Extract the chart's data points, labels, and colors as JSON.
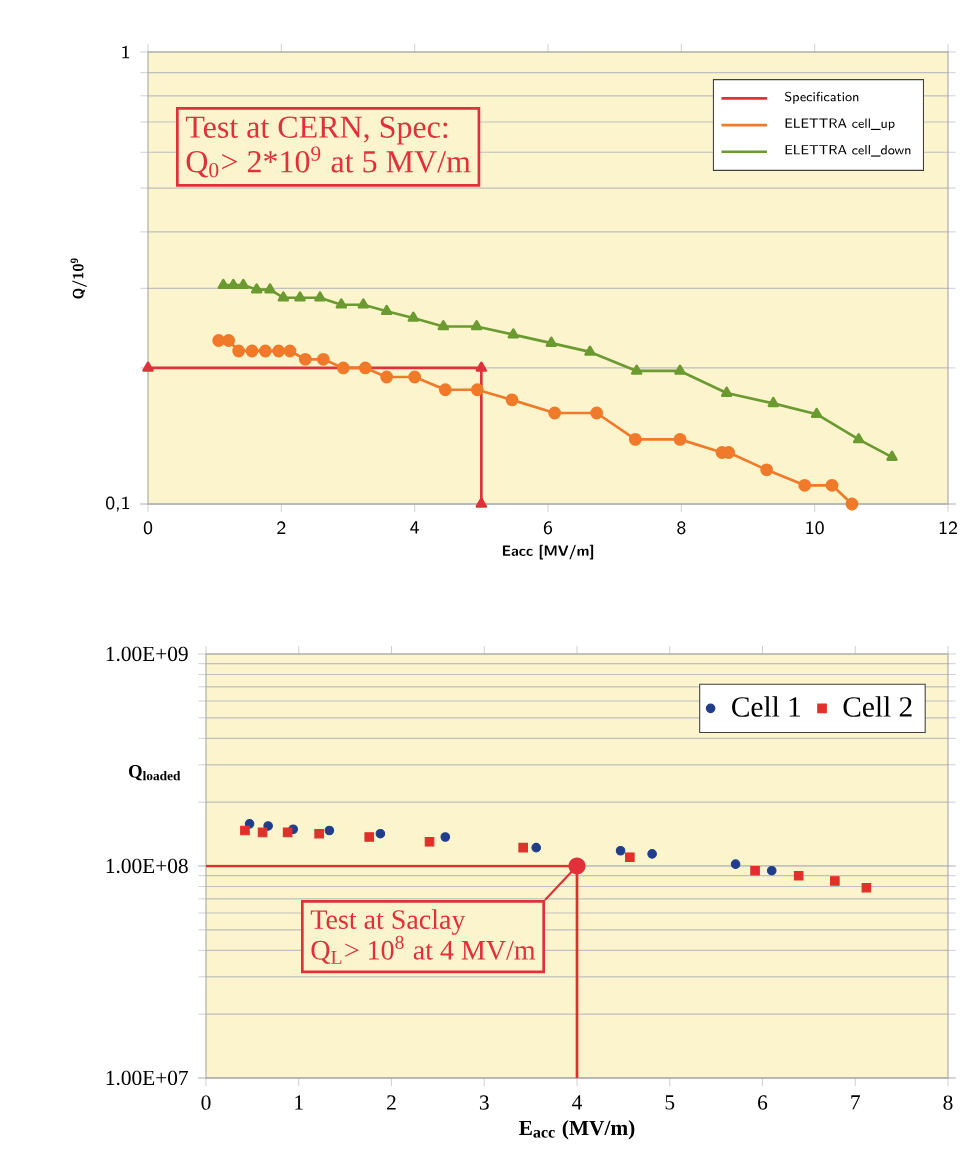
{
  "chart_data": [
    {
      "type": "line",
      "log": "y",
      "xlabel": "Eacc [MV/m]",
      "ylabel": "Q/10$^{9}$",
      "xlim": [
        0,
        12
      ],
      "ylim": [
        0.1,
        1
      ],
      "xticks": [
        0,
        2,
        4,
        6,
        8,
        10,
        12
      ],
      "yticks": [
        {
          "value": 0.1,
          "label": "0,1"
        },
        1
      ],
      "grid": "y",
      "legend": "top right",
      "annotations": [
        "Test at CERN, Spec:",
        "Q$_{0}$> 2*10$^{9}$ at 5 MV/m"
      ],
      "series": [
        {
          "name": "Specification",
          "color": "#e0303a",
          "marker": "triangle",
          "x": [
            0,
            5,
            5
          ],
          "values": [
            0.2,
            0.2,
            0.1
          ]
        },
        {
          "name": "ELETTRA cell_up",
          "color": "#f07a2a",
          "marker": "circle",
          "x": [
            1.06,
            1.21,
            1.36,
            1.56,
            1.76,
            1.96,
            2.13,
            2.36,
            2.63,
            2.93,
            3.26,
            3.58,
            4.0,
            4.46,
            4.94,
            5.46,
            6.1,
            6.73,
            7.31,
            7.98,
            8.61,
            8.71,
            9.28,
            9.85,
            10.26,
            10.56
          ],
          "values": [
            0.23,
            0.23,
            0.218,
            0.218,
            0.218,
            0.218,
            0.218,
            0.209,
            0.209,
            0.2,
            0.2,
            0.191,
            0.191,
            0.179,
            0.179,
            0.17,
            0.159,
            0.159,
            0.139,
            0.139,
            0.13,
            0.13,
            0.119,
            0.11,
            0.11,
            0.1
          ]
        },
        {
          "name": "ELETTRA cell_down",
          "color": "#6a9a30",
          "marker": "triangle",
          "x": [
            1.13,
            1.28,
            1.43,
            1.63,
            1.83,
            2.03,
            2.28,
            2.58,
            2.9,
            3.23,
            3.58,
            3.98,
            4.43,
            4.93,
            5.48,
            6.05,
            6.63,
            7.33,
            7.98,
            8.68,
            9.38,
            10.03,
            10.66,
            11.16
          ],
          "values": [
            0.305,
            0.305,
            0.305,
            0.298,
            0.298,
            0.286,
            0.286,
            0.286,
            0.276,
            0.276,
            0.267,
            0.258,
            0.247,
            0.247,
            0.237,
            0.227,
            0.217,
            0.197,
            0.197,
            0.176,
            0.167,
            0.158,
            0.139,
            0.127
          ]
        }
      ]
    },
    {
      "type": "scatter",
      "log": "y",
      "xlabel": "E$_{acc}$ (MV/m)",
      "ylabel": "Q$_{loaded}$",
      "xlim": [
        0,
        8
      ],
      "ylim": [
        10000000,
        1000000000
      ],
      "xticks": [
        0,
        1,
        2,
        3,
        4,
        5,
        6,
        7,
        8
      ],
      "yticks": [
        {
          "value": 10000000,
          "label": "1.00E+07"
        },
        {
          "value": 100000000,
          "label": "1.00E+08"
        },
        {
          "value": 1000000000,
          "label": "1.00E+09"
        }
      ],
      "grid": "y",
      "legend": "top right",
      "annotations": [
        "Test at Saclay",
        "Q$_{L}$> 10$^{8}$ at 4 MV/m"
      ],
      "series": [
        {
          "name": "Cell 1",
          "color": "#1f3d8a",
          "marker": "circle",
          "x": [
            0.47,
            0.67,
            0.94,
            1.33,
            1.88,
            2.58,
            3.56,
            4.47,
            4.81,
            5.71,
            6.1
          ],
          "values": [
            158000000,
            154500000,
            149000000,
            147000000,
            142000000,
            137000000,
            122000000,
            118000000,
            114000000,
            102000000,
            95000000
          ]
        },
        {
          "name": "Cell 2",
          "color": "#e0302a",
          "marker": "square",
          "x": [
            0.42,
            0.61,
            0.88,
            1.22,
            1.76,
            2.41,
            3.42,
            4.57,
            5.92,
            6.39,
            6.78,
            7.12
          ],
          "values": [
            147000000,
            144000000,
            144000000,
            142000000,
            137000000,
            130000000,
            122000000,
            110000000,
            95000000,
            90000000,
            85000000,
            79000000
          ]
        },
        {
          "type": "line",
          "color": "#e0302a",
          "marker": "none",
          "x": [
            0,
            4,
            4
          ],
          "values": [
            100000000,
            100000000,
            10000000
          ]
        }
      ]
    }
  ]
}
